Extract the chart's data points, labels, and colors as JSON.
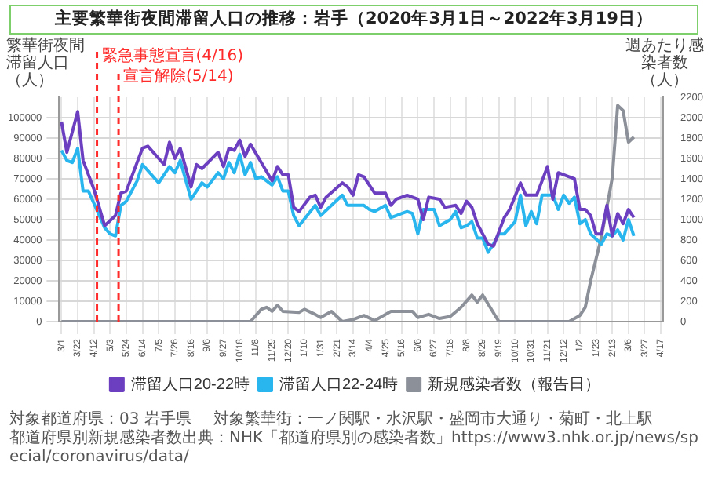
{
  "chart_data": {
    "type": "line",
    "title": "主要繁華街夜間滞留人口の推移：岩手（2020年3月1日～2022年3月19日）",
    "ylabel": "繁華街夜間滞留人口（人）",
    "y2label": "週あたり感染者数（人）",
    "xlim": [
      "2020-02-27",
      "2022-04-20"
    ],
    "xticks": [
      {
        "value": "2020-03-01",
        "label": "3/1"
      },
      {
        "value": "2020-03-22",
        "label": "3/22"
      },
      {
        "value": "2020-04-12",
        "label": "4/12"
      },
      {
        "value": "2020-05-03",
        "label": "5/3"
      },
      {
        "value": "2020-05-24",
        "label": "5/24"
      },
      {
        "value": "2020-06-14",
        "label": "6/14"
      },
      {
        "value": "2020-07-05",
        "label": "7/5"
      },
      {
        "value": "2020-07-26",
        "label": "7/26"
      },
      {
        "value": "2020-08-16",
        "label": "8/16"
      },
      {
        "value": "2020-09-06",
        "label": "9/6"
      },
      {
        "value": "2020-09-27",
        "label": "9/27"
      },
      {
        "value": "2020-10-18",
        "label": "10/18"
      },
      {
        "value": "2020-11-08",
        "label": "11/8"
      },
      {
        "value": "2020-11-29",
        "label": "11/29"
      },
      {
        "value": "2020-12-20",
        "label": "12/20"
      },
      {
        "value": "2021-01-10",
        "label": "1/10"
      },
      {
        "value": "2021-01-31",
        "label": "1/31"
      },
      {
        "value": "2021-02-21",
        "label": "2/21"
      },
      {
        "value": "2021-03-14",
        "label": "3/14"
      },
      {
        "value": "2021-04-04",
        "label": "4/4"
      },
      {
        "value": "2021-04-25",
        "label": "4/25"
      },
      {
        "value": "2021-05-16",
        "label": "5/16"
      },
      {
        "value": "2021-06-06",
        "label": "6/6"
      },
      {
        "value": "2021-06-27",
        "label": "6/27"
      },
      {
        "value": "2021-07-18",
        "label": "7/18"
      },
      {
        "value": "2021-08-08",
        "label": "8/8"
      },
      {
        "value": "2021-08-29",
        "label": "8/29"
      },
      {
        "value": "2021-09-19",
        "label": "9/19"
      },
      {
        "value": "2021-10-10",
        "label": "10/10"
      },
      {
        "value": "2021-10-31",
        "label": "10/31"
      },
      {
        "value": "2021-11-21",
        "label": "11/21"
      },
      {
        "value": "2021-12-12",
        "label": "12/12"
      },
      {
        "value": "2022-01-02",
        "label": "1/2"
      },
      {
        "value": "2022-01-23",
        "label": "1/23"
      },
      {
        "value": "2022-02-13",
        "label": "2/13"
      },
      {
        "value": "2022-03-06",
        "label": "3/6"
      },
      {
        "value": "2022-03-27",
        "label": "3/27"
      },
      {
        "value": "2022-04-17",
        "label": "4/17"
      }
    ],
    "ylim": [
      0,
      110000
    ],
    "yticks": [
      0,
      10000,
      20000,
      30000,
      40000,
      50000,
      60000,
      70000,
      80000,
      90000,
      100000
    ],
    "y2lim": [
      0,
      2200
    ],
    "y2ticks": [
      0,
      200,
      400,
      600,
      800,
      1000,
      1200,
      1400,
      1600,
      1800,
      2000,
      2200
    ],
    "grid": true,
    "legend": "bottom",
    "series": [
      {
        "name": "滞留人口20-22時",
        "type": "line",
        "color": "#6b3fc0",
        "x": [
          "2020-03-01",
          "2020-03-08",
          "2020-03-22",
          "2020-03-29",
          "2020-04-12",
          "2020-04-26",
          "2020-05-10",
          "2020-05-17",
          "2020-05-24",
          "2020-06-14",
          "2020-06-21",
          "2020-07-12",
          "2020-07-19",
          "2020-07-26",
          "2020-08-02",
          "2020-08-16",
          "2020-08-23",
          "2020-08-30",
          "2020-09-20",
          "2020-09-27",
          "2020-10-04",
          "2020-10-11",
          "2020-10-18",
          "2020-10-25",
          "2020-11-01",
          "2020-11-29",
          "2020-12-06",
          "2020-12-13",
          "2020-12-20",
          "2020-12-27",
          "2021-01-03",
          "2021-01-17",
          "2021-01-24",
          "2021-01-31",
          "2021-02-07",
          "2021-02-28",
          "2021-03-07",
          "2021-03-14",
          "2021-03-21",
          "2021-03-28",
          "2021-04-11",
          "2021-04-25",
          "2021-05-02",
          "2021-05-09",
          "2021-05-23",
          "2021-06-06",
          "2021-06-13",
          "2021-06-20",
          "2021-07-04",
          "2021-07-11",
          "2021-07-25",
          "2021-08-01",
          "2021-08-08",
          "2021-08-15",
          "2021-08-22",
          "2021-09-05",
          "2021-09-12",
          "2021-09-26",
          "2021-10-03",
          "2021-10-17",
          "2021-10-24",
          "2021-11-07",
          "2021-11-21",
          "2021-11-28",
          "2021-12-05",
          "2021-12-19",
          "2021-12-26",
          "2022-01-02",
          "2022-01-09",
          "2022-01-16",
          "2022-01-23",
          "2022-01-30",
          "2022-02-06",
          "2022-02-13",
          "2022-02-20",
          "2022-02-27",
          "2022-03-06",
          "2022-03-13"
        ],
        "values": [
          98000,
          83000,
          103000,
          79000,
          65000,
          47000,
          52000,
          63000,
          64000,
          85000,
          86000,
          77000,
          88000,
          80000,
          85000,
          66000,
          77000,
          75000,
          83000,
          76000,
          85000,
          84000,
          89000,
          81000,
          87000,
          69000,
          76000,
          72000,
          72000,
          56000,
          54000,
          61000,
          62000,
          56000,
          61000,
          68000,
          66000,
          62000,
          72000,
          71000,
          63000,
          63000,
          57000,
          60000,
          62000,
          60000,
          50000,
          61000,
          60000,
          56000,
          57000,
          53000,
          59000,
          56000,
          48000,
          38000,
          37000,
          51000,
          55000,
          68000,
          62000,
          62000,
          76000,
          60000,
          73000,
          71000,
          70000,
          55000,
          55000,
          52000,
          43000,
          43000,
          57000,
          42000,
          53000,
          48000,
          55000,
          51000
        ]
      },
      {
        "name": "滞留人口22-24時",
        "type": "line",
        "color": "#29b6ee",
        "x": [
          "2020-03-01",
          "2020-03-08",
          "2020-03-15",
          "2020-03-22",
          "2020-03-29",
          "2020-04-05",
          "2020-04-19",
          "2020-04-26",
          "2020-05-03",
          "2020-05-10",
          "2020-05-17",
          "2020-05-24",
          "2020-06-07",
          "2020-06-14",
          "2020-07-05",
          "2020-07-19",
          "2020-07-26",
          "2020-08-02",
          "2020-08-16",
          "2020-08-30",
          "2020-09-06",
          "2020-09-20",
          "2020-09-27",
          "2020-10-04",
          "2020-10-11",
          "2020-10-18",
          "2020-10-25",
          "2020-11-01",
          "2020-11-08",
          "2020-11-15",
          "2020-11-29",
          "2020-12-06",
          "2020-12-13",
          "2020-12-20",
          "2020-12-27",
          "2021-01-03",
          "2021-01-24",
          "2021-01-31",
          "2021-02-28",
          "2021-03-07",
          "2021-03-21",
          "2021-03-28",
          "2021-04-04",
          "2021-04-11",
          "2021-04-25",
          "2021-05-02",
          "2021-05-09",
          "2021-05-23",
          "2021-05-30",
          "2021-06-06",
          "2021-06-13",
          "2021-06-27",
          "2021-07-04",
          "2021-07-18",
          "2021-07-25",
          "2021-08-01",
          "2021-08-08",
          "2021-08-15",
          "2021-08-22",
          "2021-08-29",
          "2021-09-05",
          "2021-09-12",
          "2021-09-19",
          "2021-09-26",
          "2021-10-03",
          "2021-10-10",
          "2021-10-17",
          "2021-10-24",
          "2021-10-31",
          "2021-11-07",
          "2021-11-14",
          "2021-11-28",
          "2021-12-05",
          "2021-12-12",
          "2021-12-19",
          "2021-12-26",
          "2022-01-02",
          "2022-01-09",
          "2022-01-16",
          "2022-01-30",
          "2022-02-06",
          "2022-02-13",
          "2022-02-20",
          "2022-02-27",
          "2022-03-06",
          "2022-03-13"
        ],
        "values": [
          84000,
          79000,
          78000,
          85000,
          64000,
          64000,
          52000,
          46000,
          43000,
          42000,
          57000,
          59000,
          69000,
          77000,
          68000,
          76000,
          73000,
          79000,
          60000,
          68000,
          66000,
          73000,
          70000,
          78000,
          73000,
          82000,
          72000,
          78000,
          70000,
          71000,
          67000,
          71000,
          64000,
          64000,
          52000,
          47000,
          57000,
          52000,
          62000,
          57000,
          57000,
          57000,
          55000,
          54000,
          57000,
          51000,
          52000,
          54000,
          53000,
          43000,
          55000,
          55000,
          47000,
          50000,
          54000,
          46000,
          47000,
          49000,
          41000,
          41000,
          34000,
          38000,
          43000,
          43000,
          46000,
          49000,
          62000,
          47000,
          54000,
          48000,
          62000,
          62000,
          55000,
          62000,
          58000,
          61000,
          48000,
          50000,
          43000,
          38000,
          43000,
          42000,
          45000,
          40000,
          50000,
          42000
        ]
      },
      {
        "name": "新規感染者数（報告日）",
        "type": "line",
        "axis": "y2",
        "color": "#8c9099",
        "x": [
          "2020-03-01",
          "2020-11-01",
          "2020-11-15",
          "2020-11-22",
          "2020-11-29",
          "2020-12-06",
          "2020-12-13",
          "2021-01-03",
          "2021-01-10",
          "2021-01-24",
          "2021-01-31",
          "2021-02-14",
          "2021-02-28",
          "2021-03-14",
          "2021-03-28",
          "2021-04-11",
          "2021-05-02",
          "2021-05-30",
          "2021-06-06",
          "2021-06-20",
          "2021-07-04",
          "2021-07-18",
          "2021-08-01",
          "2021-08-15",
          "2021-08-22",
          "2021-08-29",
          "2021-09-19",
          "2021-12-19",
          "2022-01-02",
          "2022-01-09",
          "2022-01-16",
          "2022-01-30",
          "2022-02-13",
          "2022-02-20",
          "2022-02-27",
          "2022-03-06",
          "2022-03-13"
        ],
        "values": [
          0,
          0,
          120,
          140,
          100,
          160,
          100,
          90,
          120,
          70,
          40,
          100,
          0,
          20,
          60,
          10,
          100,
          100,
          40,
          70,
          30,
          50,
          140,
          260,
          190,
          260,
          0,
          0,
          60,
          140,
          400,
          830,
          1410,
          2120,
          2070,
          1760,
          1810
        ]
      }
    ],
    "ref_lines": [
      {
        "axis": "x",
        "value": "2020-04-16",
        "label": "緊急事態宣言(4/16)",
        "color": "#ff2a2a",
        "line_style": "dashed"
      },
      {
        "axis": "x",
        "value": "2020-05-14",
        "label": "宣言解除(5/14)",
        "color": "#ff2a2a",
        "line_style": "dashed"
      }
    ],
    "annotations": [
      "対象都道府県：03 岩手県",
      "対象繁華街：一ノ関駅・水沢駅・盛岡市大通り・菊町・北上駅",
      "都道府県別新規感染者数出典：NHK「都道府県別の感染者数」https://www3.nhk.or.jp/news/special/coronavirus/data/"
    ]
  }
}
